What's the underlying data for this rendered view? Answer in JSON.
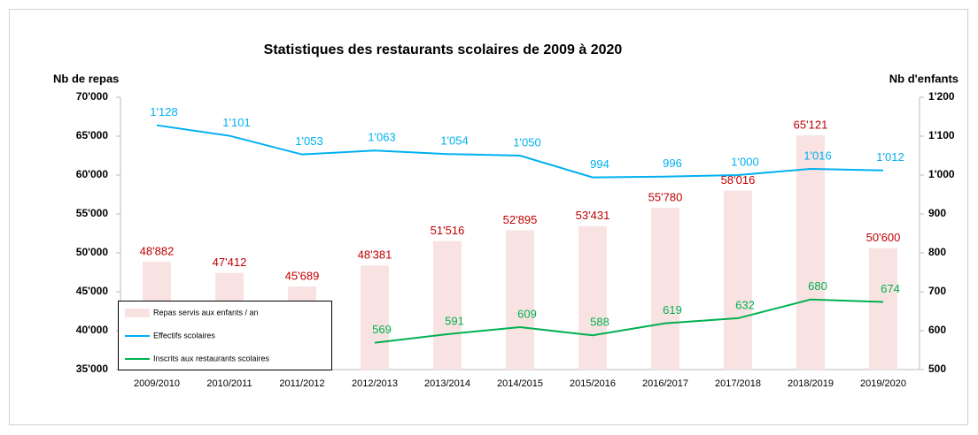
{
  "chart_data": {
    "type": "bar-line",
    "title": "Statistiques des restaurants scolaires de 2009 à 2020",
    "y_label": "Nb de repas",
    "y2_label": "Nb d'enfants",
    "categories": [
      "2009/2010",
      "2010/2011",
      "2011/2012",
      "2012/2013",
      "2013/2014",
      "2014/2015",
      "2015/2016",
      "2016/2017",
      "2017/2018",
      "2018/2019",
      "2019/2020"
    ],
    "series": [
      {
        "name": "Repas  servis aux enfants / an",
        "type": "bar",
        "color": "#f9e3e2",
        "label_color": "#c00000",
        "values": [
          48882,
          47412,
          45689,
          48381,
          51516,
          52895,
          53431,
          55780,
          58016,
          65121,
          50600
        ],
        "value_labels": [
          "48'882",
          "47'412",
          "45'689",
          "48'381",
          "51'516",
          "52'895",
          "53'431",
          "55'780",
          "58'016",
          "65'121",
          "50'600"
        ]
      },
      {
        "name": "Effectifs scolaires",
        "type": "line",
        "axis": "y2",
        "color": "#00b0f0",
        "label_color": "#00b0f0",
        "values": [
          1128,
          1101,
          1053,
          1063,
          1054,
          1050,
          994,
          996,
          1000,
          1016,
          1012
        ],
        "value_labels": [
          "1'128",
          "1'101",
          "1'053",
          "1'063",
          "1'054",
          "1'050",
          "994",
          "996",
          "1'000",
          "1'016",
          "1'012"
        ]
      },
      {
        "name": "Inscrits aux restaurants scolaires",
        "type": "line",
        "axis": "y2",
        "color": "#00b050",
        "label_color": "#00b050",
        "values": [
          null,
          null,
          null,
          569,
          591,
          609,
          588,
          619,
          632,
          680,
          674
        ]
      }
    ],
    "ylim": [
      35000,
      70000
    ],
    "yticks": [
      {
        "value": 35000,
        "label": "35'000"
      },
      {
        "value": 40000,
        "label": "40'000"
      },
      {
        "value": 45000,
        "label": "45'000"
      },
      {
        "value": 50000,
        "label": "50'000"
      },
      {
        "value": 55000,
        "label": "55'000"
      },
      {
        "value": 60000,
        "label": "60'000"
      },
      {
        "value": 65000,
        "label": "65'000"
      },
      {
        "value": 70000,
        "label": "70'000"
      }
    ],
    "y2lim": [
      500,
      1200
    ],
    "y2ticks": [
      500,
      600,
      700,
      800,
      900,
      {
        "value": 1000,
        "label": "1'000"
      },
      {
        "value": 1100,
        "label": "1'100"
      },
      {
        "value": 1200,
        "label": "1'200"
      }
    ],
    "legend": "bottom-left"
  }
}
